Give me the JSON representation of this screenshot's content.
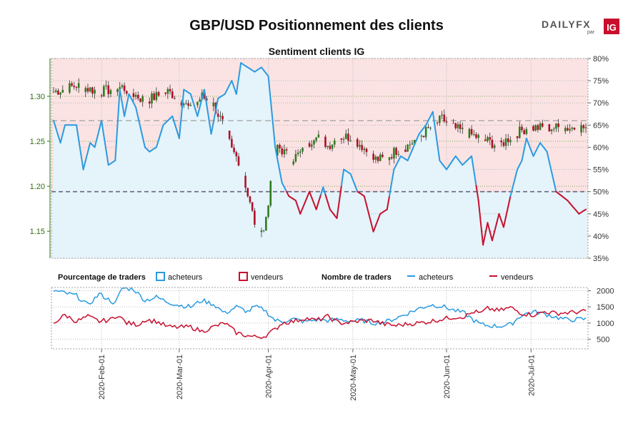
{
  "title": "GBP/USD Positionnement des clients",
  "subtitle": "Sentiment clients IG",
  "logo": {
    "text": "DAILYFX",
    "small": "par",
    "badge": "IG"
  },
  "colors": {
    "buyers": "#2b9be0",
    "sellers": "#c8102e",
    "buy_fill": "#e5f3fa",
    "sell_fill": "#fbe3e3",
    "candle_up": "#2e7d1e",
    "candle_down": "#b0102a",
    "price_axis": "#2f6f10"
  },
  "legend": {
    "pct_title": "Pourcentage de traders",
    "pct_buyers": "acheteurs",
    "pct_sellers": "vendeurs",
    "count_title": "Nombre de traders",
    "count_buyers": "acheteurs",
    "count_sellers": "vendeurs"
  },
  "chart_data": [
    {
      "type": "candlestick+line",
      "name": "price_and_sentiment",
      "title": "Sentiment clients IG",
      "price_axis": {
        "ticks": [
          "1.15",
          "1.20",
          "1.25",
          "1.30"
        ],
        "tick_values": [
          1.15,
          1.2,
          1.25,
          1.3
        ],
        "range": [
          1.12,
          1.342
        ]
      },
      "sentiment_axis": {
        "ticks": [
          "35%",
          "40%",
          "45%",
          "50%",
          "55%",
          "60%",
          "65%",
          "70%",
          "75%",
          "80%"
        ],
        "tick_values": [
          35,
          40,
          45,
          50,
          55,
          60,
          65,
          70,
          75,
          80
        ],
        "range": [
          35,
          80
        ]
      },
      "reference_lines": [
        50,
        66
      ],
      "price_anchors": [
        [
          0,
          1.305
        ],
        [
          10,
          1.312
        ],
        [
          20,
          1.305
        ],
        [
          30,
          1.31
        ],
        [
          40,
          1.295
        ],
        [
          50,
          1.305
        ],
        [
          55,
          1.298
        ],
        [
          60,
          1.285
        ],
        [
          65,
          1.3
        ],
        [
          70,
          1.29
        ],
        [
          75,
          1.265
        ],
        [
          78,
          1.24
        ],
        [
          82,
          1.225
        ],
        [
          85,
          1.19
        ],
        [
          88,
          1.16
        ],
        [
          92,
          1.15
        ],
        [
          95,
          1.2
        ],
        [
          98,
          1.245
        ],
        [
          104,
          1.23
        ],
        [
          110,
          1.24
        ],
        [
          115,
          1.26
        ],
        [
          120,
          1.245
        ],
        [
          125,
          1.255
        ],
        [
          130,
          1.255
        ],
        [
          135,
          1.245
        ],
        [
          140,
          1.23
        ],
        [
          145,
          1.23
        ],
        [
          150,
          1.24
        ],
        [
          155,
          1.245
        ],
        [
          160,
          1.255
        ],
        [
          165,
          1.265
        ],
        [
          170,
          1.275
        ],
        [
          175,
          1.265
        ],
        [
          180,
          1.26
        ],
        [
          185,
          1.255
        ],
        [
          190,
          1.25
        ],
        [
          195,
          1.245
        ],
        [
          200,
          1.255
        ],
        [
          207,
          1.265
        ]
      ],
      "buyers_pct_anchors": [
        [
          0,
          66
        ],
        [
          3,
          61
        ],
        [
          5,
          65
        ],
        [
          10,
          65
        ],
        [
          13,
          55
        ],
        [
          16,
          61
        ],
        [
          18,
          60
        ],
        [
          21,
          66
        ],
        [
          24,
          56
        ],
        [
          27,
          57
        ],
        [
          29,
          73
        ],
        [
          31,
          67
        ],
        [
          33,
          72
        ],
        [
          36,
          69
        ],
        [
          40,
          60
        ],
        [
          42,
          59
        ],
        [
          45,
          60
        ],
        [
          48,
          65
        ],
        [
          52,
          67
        ],
        [
          55,
          62
        ],
        [
          57,
          73
        ],
        [
          60,
          72
        ],
        [
          63,
          67
        ],
        [
          66,
          73
        ],
        [
          69,
          63
        ],
        [
          72,
          71
        ],
        [
          75,
          72
        ],
        [
          78,
          75
        ],
        [
          80,
          72
        ],
        [
          82,
          79
        ],
        [
          85,
          78
        ],
        [
          88,
          77
        ],
        [
          91,
          78
        ],
        [
          94,
          76
        ],
        [
          97,
          60
        ],
        [
          100,
          52
        ],
        [
          103,
          49
        ],
        [
          106,
          48
        ],
        [
          108,
          45
        ],
        [
          112,
          50
        ],
        [
          115,
          46
        ],
        [
          118,
          51
        ],
        [
          121,
          46
        ],
        [
          124,
          44
        ],
        [
          127,
          55
        ],
        [
          130,
          54
        ],
        [
          133,
          50
        ],
        [
          136,
          49
        ],
        [
          140,
          41
        ],
        [
          143,
          45
        ],
        [
          146,
          46
        ],
        [
          149,
          55
        ],
        [
          152,
          58
        ],
        [
          155,
          57
        ],
        [
          160,
          63
        ],
        [
          163,
          65
        ],
        [
          166,
          68
        ],
        [
          169,
          57
        ],
        [
          172,
          55
        ],
        [
          176,
          58
        ],
        [
          179,
          56
        ],
        [
          183,
          58
        ],
        [
          186,
          48
        ],
        [
          188,
          38
        ],
        [
          190,
          43
        ],
        [
          192,
          39
        ],
        [
          195,
          45
        ],
        [
          197,
          42
        ],
        [
          200,
          49
        ],
        [
          203,
          55
        ],
        [
          205,
          57
        ],
        [
          207,
          62
        ],
        [
          210,
          58
        ],
        [
          213,
          61
        ],
        [
          216,
          59
        ],
        [
          220,
          50
        ],
        [
          225,
          48
        ],
        [
          230,
          45
        ],
        [
          233,
          46
        ]
      ]
    },
    {
      "type": "line",
      "name": "trader_counts",
      "y_ticks": [
        "500",
        "1000",
        "1500",
        "2000"
      ],
      "y_tick_values": [
        500,
        1000,
        1500,
        2000
      ],
      "y_range": [
        200,
        2100
      ],
      "series": [
        {
          "name": "acheteurs",
          "anchors": [
            [
              0,
              2000
            ],
            [
              10,
              1850
            ],
            [
              15,
              1550
            ],
            [
              20,
              1900
            ],
            [
              27,
              1600
            ],
            [
              30,
              2080
            ],
            [
              35,
              2050
            ],
            [
              40,
              1700
            ],
            [
              45,
              1800
            ],
            [
              50,
              1650
            ],
            [
              55,
              1550
            ],
            [
              60,
              1500
            ],
            [
              65,
              1700
            ],
            [
              70,
              1580
            ],
            [
              75,
              1300
            ],
            [
              80,
              1500
            ],
            [
              85,
              1350
            ],
            [
              88,
              1500
            ],
            [
              92,
              1420
            ],
            [
              97,
              1080
            ],
            [
              100,
              1050
            ],
            [
              105,
              1120
            ],
            [
              110,
              1040
            ],
            [
              115,
              1100
            ],
            [
              120,
              1080
            ],
            [
              125,
              1110
            ],
            [
              130,
              1060
            ],
            [
              135,
              1080
            ],
            [
              140,
              1000
            ],
            [
              145,
              1030
            ],
            [
              150,
              1150
            ],
            [
              155,
              1300
            ],
            [
              160,
              1450
            ],
            [
              165,
              1560
            ],
            [
              170,
              1520
            ],
            [
              175,
              1400
            ],
            [
              180,
              1300
            ],
            [
              184,
              1080
            ],
            [
              187,
              960
            ],
            [
              190,
              920
            ],
            [
              195,
              900
            ],
            [
              200,
              950
            ],
            [
              205,
              1250
            ],
            [
              210,
              1350
            ],
            [
              215,
              1280
            ],
            [
              220,
              1180
            ],
            [
              225,
              1100
            ],
            [
              233,
              1120
            ]
          ]
        },
        {
          "name": "vendeurs",
          "anchors": [
            [
              0,
              1000
            ],
            [
              5,
              1250
            ],
            [
              10,
              1050
            ],
            [
              15,
              1200
            ],
            [
              20,
              1050
            ],
            [
              25,
              1100
            ],
            [
              28,
              1250
            ],
            [
              32,
              1000
            ],
            [
              37,
              950
            ],
            [
              40,
              1100
            ],
            [
              45,
              1050
            ],
            [
              50,
              880
            ],
            [
              55,
              870
            ],
            [
              60,
              880
            ],
            [
              65,
              740
            ],
            [
              70,
              880
            ],
            [
              75,
              1000
            ],
            [
              80,
              700
            ],
            [
              85,
              600
            ],
            [
              88,
              570
            ],
            [
              92,
              580
            ],
            [
              97,
              800
            ],
            [
              100,
              1000
            ],
            [
              105,
              1050
            ],
            [
              110,
              1150
            ],
            [
              115,
              1080
            ],
            [
              120,
              1200
            ],
            [
              125,
              1000
            ],
            [
              130,
              1020
            ],
            [
              135,
              1070
            ],
            [
              140,
              1080
            ],
            [
              145,
              960
            ],
            [
              150,
              920
            ],
            [
              155,
              970
            ],
            [
              160,
              1000
            ],
            [
              165,
              1050
            ],
            [
              170,
              1120
            ],
            [
              175,
              1180
            ],
            [
              180,
              1200
            ],
            [
              184,
              1350
            ],
            [
              187,
              1300
            ],
            [
              190,
              1450
            ],
            [
              195,
              1380
            ],
            [
              200,
              1480
            ],
            [
              205,
              1300
            ],
            [
              210,
              1250
            ],
            [
              215,
              1350
            ],
            [
              220,
              1300
            ],
            [
              225,
              1320
            ],
            [
              233,
              1360
            ]
          ]
        }
      ]
    }
  ],
  "date_labels": [
    {
      "index": 21,
      "label": "2020-Feb-01"
    },
    {
      "index": 55,
      "label": "2020-Mar-01"
    },
    {
      "index": 94,
      "label": "2020-Apr-01"
    },
    {
      "index": 131,
      "label": "2020-May-01"
    },
    {
      "index": 172,
      "label": "2020-Jun-01"
    },
    {
      "index": 209,
      "label": "2020-Jul-01"
    }
  ],
  "total_days": 234
}
